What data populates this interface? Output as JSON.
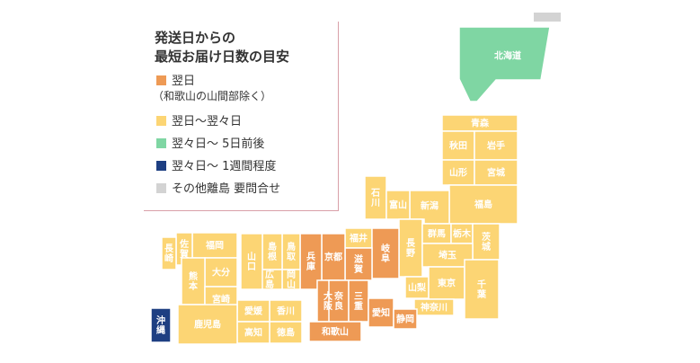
{
  "colors": {
    "next_day": "#EE9A55",
    "next_to_two": "#FCD574",
    "two_to_five": "#7FD6A3",
    "two_to_week": "#1E3F82",
    "islands": "#D3D3D3",
    "border_white": "#FFFFFF"
  },
  "legend": {
    "title_line1": "発送日からの",
    "title_line2": "最短お届け日数の目安",
    "items": [
      {
        "key": "next_day",
        "label": "翌日",
        "sub": "（和歌山の山間部除く）"
      },
      {
        "key": "next_to_two",
        "label": "翌日〜翌々日"
      },
      {
        "key": "two_to_five",
        "label": "翌々日〜 5日前後"
      },
      {
        "key": "two_to_week",
        "label": "翌々日〜 1週間程度"
      },
      {
        "key": "islands",
        "label": "その他離島 要問合せ"
      }
    ]
  },
  "prefectures": [
    {
      "id": "hokkaido",
      "name": "北海道",
      "zone": "two_to_five"
    },
    {
      "id": "aomori",
      "name": "青森",
      "zone": "next_to_two"
    },
    {
      "id": "akita",
      "name": "秋田",
      "zone": "next_to_two"
    },
    {
      "id": "iwate",
      "name": "岩手",
      "zone": "next_to_two"
    },
    {
      "id": "yamagata",
      "name": "山形",
      "zone": "next_to_two"
    },
    {
      "id": "miyagi",
      "name": "宮城",
      "zone": "next_to_two"
    },
    {
      "id": "fukushima",
      "name": "福島",
      "zone": "next_to_two"
    },
    {
      "id": "niigata",
      "name": "新潟",
      "zone": "next_to_two"
    },
    {
      "id": "ishikawa",
      "name": "石川",
      "zone": "next_to_two"
    },
    {
      "id": "toyama",
      "name": "富山",
      "zone": "next_to_two"
    },
    {
      "id": "fukui",
      "name": "福井",
      "zone": "next_to_two"
    },
    {
      "id": "nagano",
      "name": "長野",
      "zone": "next_to_two"
    },
    {
      "id": "gunma",
      "name": "群馬",
      "zone": "next_to_two"
    },
    {
      "id": "tochigi",
      "name": "栃木",
      "zone": "next_to_two"
    },
    {
      "id": "ibaraki",
      "name": "茨城",
      "zone": "next_to_two"
    },
    {
      "id": "saitama",
      "name": "埼玉",
      "zone": "next_to_two"
    },
    {
      "id": "yamanashi",
      "name": "山梨",
      "zone": "next_to_two"
    },
    {
      "id": "tokyo",
      "name": "東京",
      "zone": "next_to_two"
    },
    {
      "id": "chiba",
      "name": "千葉",
      "zone": "next_to_two"
    },
    {
      "id": "kanagawa",
      "name": "神奈川",
      "zone": "next_to_two"
    },
    {
      "id": "gifu",
      "name": "岐阜",
      "zone": "next_day"
    },
    {
      "id": "shiga",
      "name": "滋賀",
      "zone": "next_day"
    },
    {
      "id": "kyoto",
      "name": "京都",
      "zone": "next_day"
    },
    {
      "id": "hyogo",
      "name": "兵庫",
      "zone": "next_day"
    },
    {
      "id": "osaka",
      "name": "大阪",
      "zone": "next_day"
    },
    {
      "id": "nara",
      "name": "奈良",
      "zone": "next_day"
    },
    {
      "id": "mie",
      "name": "三重",
      "zone": "next_day"
    },
    {
      "id": "aichi",
      "name": "愛知",
      "zone": "next_day"
    },
    {
      "id": "shizuoka",
      "name": "静岡",
      "zone": "next_day"
    },
    {
      "id": "wakayama",
      "name": "和歌山",
      "zone": "next_day"
    },
    {
      "id": "tottori",
      "name": "鳥取",
      "zone": "next_to_two"
    },
    {
      "id": "shimane",
      "name": "島根",
      "zone": "next_to_two"
    },
    {
      "id": "okayama",
      "name": "岡山",
      "zone": "next_to_two"
    },
    {
      "id": "hiroshima",
      "name": "広島",
      "zone": "next_to_two"
    },
    {
      "id": "yamaguchi",
      "name": "山口",
      "zone": "next_to_two"
    },
    {
      "id": "kagawa",
      "name": "香川",
      "zone": "next_to_two"
    },
    {
      "id": "ehime",
      "name": "愛媛",
      "zone": "next_to_two"
    },
    {
      "id": "tokushima",
      "name": "徳島",
      "zone": "next_to_two"
    },
    {
      "id": "kochi",
      "name": "高知",
      "zone": "next_to_two"
    },
    {
      "id": "fukuoka",
      "name": "福岡",
      "zone": "next_to_two"
    },
    {
      "id": "saga",
      "name": "佐賀",
      "zone": "next_to_two"
    },
    {
      "id": "nagasaki",
      "name": "長崎",
      "zone": "next_to_two"
    },
    {
      "id": "oita",
      "name": "大分",
      "zone": "next_to_two"
    },
    {
      "id": "kumamoto",
      "name": "熊本",
      "zone": "next_to_two"
    },
    {
      "id": "miyazaki",
      "name": "宮崎",
      "zone": "next_to_two"
    },
    {
      "id": "kagoshima",
      "name": "鹿児島",
      "zone": "next_to_two"
    },
    {
      "id": "okinawa",
      "name": "沖縄",
      "zone": "two_to_week"
    }
  ]
}
